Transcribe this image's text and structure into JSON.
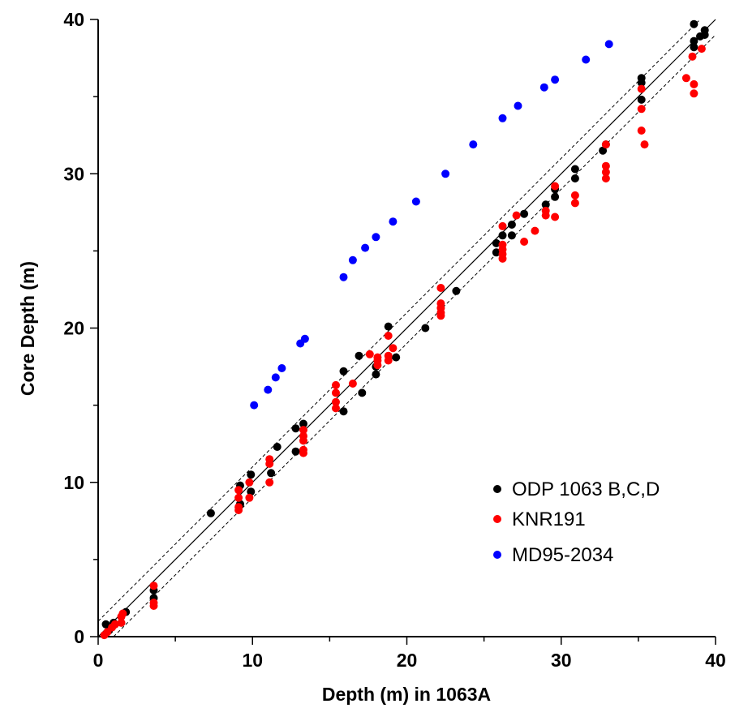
{
  "chart_data": {
    "type": "scatter",
    "title": "",
    "xlabel": "Depth (m) in 1063A",
    "ylabel": "Core Depth (m)",
    "xlim": [
      0,
      40
    ],
    "ylim": [
      0,
      40
    ],
    "x_ticks": [
      "0",
      "10",
      "20",
      "30",
      "40"
    ],
    "y_ticks": [
      "0",
      "10",
      "20",
      "30",
      "40"
    ],
    "grid": false,
    "legend_position": "bottom-right",
    "reference_lines": {
      "identity": "y = x (solid)",
      "band_offset": 1,
      "band_style": "dashed"
    },
    "series": [
      {
        "name": "ODP 1063 B,C,D",
        "color": "#000000",
        "points": [
          [
            0.5,
            0.8
          ],
          [
            0.7,
            0.4
          ],
          [
            1.0,
            0.9
          ],
          [
            1.8,
            1.6
          ],
          [
            3.6,
            2.5
          ],
          [
            3.6,
            3.0
          ],
          [
            7.3,
            8.0
          ],
          [
            9.2,
            9.8
          ],
          [
            9.2,
            8.6
          ],
          [
            9.9,
            10.5
          ],
          [
            9.9,
            9.4
          ],
          [
            11.2,
            10.6
          ],
          [
            11.6,
            12.3
          ],
          [
            12.8,
            13.5
          ],
          [
            12.8,
            12.0
          ],
          [
            13.3,
            13.8
          ],
          [
            15.9,
            17.2
          ],
          [
            15.9,
            14.6
          ],
          [
            16.9,
            18.2
          ],
          [
            17.1,
            15.8
          ],
          [
            18.0,
            17.5
          ],
          [
            18.0,
            17.0
          ],
          [
            18.8,
            20.1
          ],
          [
            19.3,
            18.1
          ],
          [
            21.2,
            20.0
          ],
          [
            23.2,
            22.4
          ],
          [
            25.8,
            25.5
          ],
          [
            25.8,
            24.9
          ],
          [
            26.2,
            26.0
          ],
          [
            26.8,
            26.7
          ],
          [
            26.8,
            26.0
          ],
          [
            27.6,
            27.4
          ],
          [
            29.0,
            28.0
          ],
          [
            29.6,
            29.0
          ],
          [
            29.6,
            28.5
          ],
          [
            30.9,
            30.3
          ],
          [
            30.9,
            29.7
          ],
          [
            32.7,
            31.5
          ],
          [
            32.9,
            31.9
          ],
          [
            35.2,
            36.2
          ],
          [
            35.2,
            35.9
          ],
          [
            35.2,
            34.8
          ],
          [
            38.6,
            39.7
          ],
          [
            38.6,
            38.6
          ],
          [
            38.6,
            38.2
          ],
          [
            39.0,
            38.9
          ],
          [
            39.3,
            39.3
          ],
          [
            39.3,
            39.0
          ]
        ]
      },
      {
        "name": "KNR191",
        "color": "#ff0000",
        "points": [
          [
            0.4,
            0.1
          ],
          [
            0.6,
            0.3
          ],
          [
            0.9,
            0.6
          ],
          [
            1.1,
            0.8
          ],
          [
            1.5,
            0.9
          ],
          [
            1.5,
            1.3
          ],
          [
            1.6,
            1.5
          ],
          [
            3.6,
            3.3
          ],
          [
            3.6,
            2.0
          ],
          [
            3.6,
            2.2
          ],
          [
            9.1,
            8.2
          ],
          [
            9.1,
            8.4
          ],
          [
            9.1,
            9.0
          ],
          [
            9.1,
            9.5
          ],
          [
            9.8,
            10.0
          ],
          [
            9.8,
            9.0
          ],
          [
            11.1,
            11.5
          ],
          [
            11.1,
            11.2
          ],
          [
            11.1,
            10.0
          ],
          [
            13.3,
            13.4
          ],
          [
            13.3,
            13.0
          ],
          [
            13.3,
            12.7
          ],
          [
            13.3,
            12.1
          ],
          [
            13.3,
            11.9
          ],
          [
            15.4,
            16.3
          ],
          [
            15.4,
            15.8
          ],
          [
            15.4,
            15.2
          ],
          [
            15.4,
            14.8
          ],
          [
            16.5,
            16.4
          ],
          [
            17.6,
            18.3
          ],
          [
            18.1,
            18.1
          ],
          [
            18.1,
            17.9
          ],
          [
            18.1,
            17.6
          ],
          [
            18.8,
            19.5
          ],
          [
            18.8,
            18.2
          ],
          [
            18.8,
            17.9
          ],
          [
            19.1,
            18.7
          ],
          [
            22.2,
            22.6
          ],
          [
            22.2,
            21.6
          ],
          [
            22.2,
            21.3
          ],
          [
            22.2,
            21.0
          ],
          [
            22.2,
            20.8
          ],
          [
            26.2,
            26.6
          ],
          [
            26.2,
            25.4
          ],
          [
            26.2,
            25.1
          ],
          [
            26.2,
            24.8
          ],
          [
            26.2,
            24.5
          ],
          [
            27.1,
            27.3
          ],
          [
            27.6,
            25.6
          ],
          [
            28.3,
            26.3
          ],
          [
            29.0,
            27.6
          ],
          [
            29.0,
            27.3
          ],
          [
            29.6,
            29.2
          ],
          [
            29.6,
            27.2
          ],
          [
            30.9,
            28.6
          ],
          [
            30.9,
            28.1
          ],
          [
            32.9,
            31.9
          ],
          [
            32.9,
            30.5
          ],
          [
            32.9,
            30.1
          ],
          [
            32.9,
            29.7
          ],
          [
            35.2,
            35.5
          ],
          [
            35.2,
            34.2
          ],
          [
            35.2,
            32.8
          ],
          [
            35.4,
            31.9
          ],
          [
            38.1,
            36.2
          ],
          [
            38.5,
            37.6
          ],
          [
            38.6,
            35.8
          ],
          [
            38.6,
            35.2
          ],
          [
            39.1,
            38.1
          ]
        ]
      },
      {
        "name": "MD95-2034",
        "color": "#0000ff",
        "points": [
          [
            10.1,
            15.0
          ],
          [
            11.0,
            16.0
          ],
          [
            11.5,
            16.8
          ],
          [
            11.9,
            17.4
          ],
          [
            13.1,
            19.0
          ],
          [
            13.4,
            19.3
          ],
          [
            15.9,
            23.3
          ],
          [
            16.5,
            24.4
          ],
          [
            17.3,
            25.2
          ],
          [
            18.0,
            25.9
          ],
          [
            19.1,
            26.9
          ],
          [
            20.6,
            28.2
          ],
          [
            22.5,
            30.0
          ],
          [
            24.3,
            31.9
          ],
          [
            26.2,
            33.6
          ],
          [
            27.2,
            34.4
          ],
          [
            28.9,
            35.6
          ],
          [
            29.6,
            36.1
          ],
          [
            31.6,
            37.4
          ],
          [
            33.1,
            38.4
          ]
        ]
      }
    ]
  }
}
